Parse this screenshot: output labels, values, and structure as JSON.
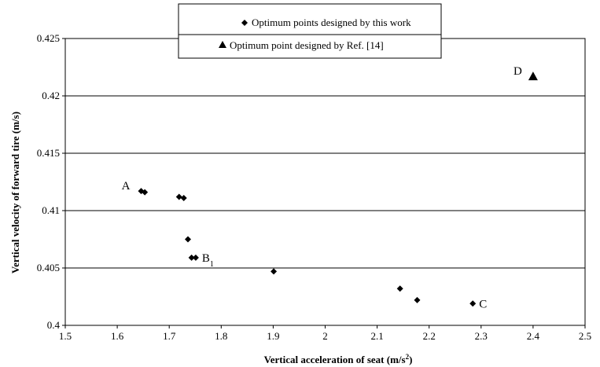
{
  "chart_data": {
    "type": "scatter",
    "xlabel": "Vertical acceleration of seat (m/s",
    "xlabel_sup": "2",
    "xlabel_end": ")",
    "ylabel": "Vertical velocity of forward tire (m/s)",
    "xlim": [
      1.5,
      2.5
    ],
    "ylim": [
      0.4,
      0.425
    ],
    "x_ticks": [
      "1.5",
      "1.6",
      "1.7",
      "1.8",
      "1.9",
      "2",
      "2.1",
      "2.2",
      "2.3",
      "2.4",
      "2.5"
    ],
    "y_ticks": [
      "0.4",
      "0.405",
      "0.41",
      "0.415",
      "0.42",
      "0.425"
    ],
    "grid": {
      "horizontal": true,
      "vertical": false
    },
    "legend_position": "top-center",
    "series": [
      {
        "name": "Optimum points designed by this work",
        "marker": "diamond",
        "points": [
          {
            "x": 1.646,
            "y": 0.4117
          },
          {
            "x": 1.653,
            "y": 0.4116
          },
          {
            "x": 1.719,
            "y": 0.4112
          },
          {
            "x": 1.728,
            "y": 0.4111
          },
          {
            "x": 1.736,
            "y": 0.4075
          },
          {
            "x": 1.743,
            "y": 0.4059
          },
          {
            "x": 1.751,
            "y": 0.4059
          },
          {
            "x": 1.901,
            "y": 0.4047
          },
          {
            "x": 2.144,
            "y": 0.4032
          },
          {
            "x": 2.177,
            "y": 0.4022
          },
          {
            "x": 2.284,
            "y": 0.4019
          }
        ]
      },
      {
        "name": "Optimum point designed by Ref. [14]",
        "marker": "triangle",
        "points": [
          {
            "x": 2.4,
            "y": 0.4217
          }
        ]
      }
    ],
    "annotations": [
      {
        "text": "A",
        "x": 1.646,
        "y": 0.4117,
        "side": "left"
      },
      {
        "text": "B",
        "sub": "1",
        "x": 1.751,
        "y": 0.4059,
        "side": "right"
      },
      {
        "text": "C",
        "x": 2.284,
        "y": 0.4019,
        "side": "right"
      },
      {
        "text": "D",
        "x": 2.4,
        "y": 0.4217,
        "side": "left"
      }
    ]
  }
}
